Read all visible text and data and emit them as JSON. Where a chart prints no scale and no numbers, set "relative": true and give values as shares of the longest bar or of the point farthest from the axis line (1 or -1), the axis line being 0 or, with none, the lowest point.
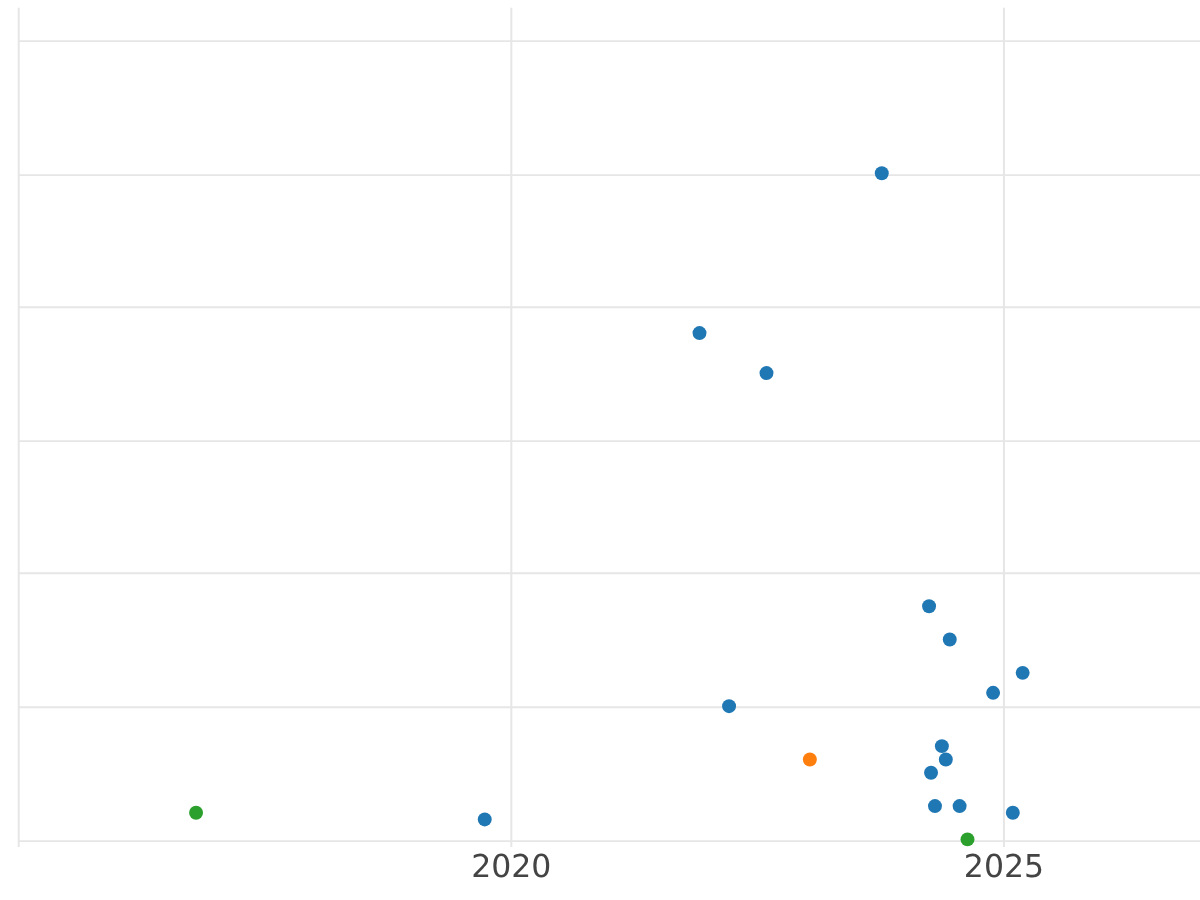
{
  "chart_data": {
    "type": "scatter",
    "relative": true,
    "grid": true,
    "marker": "circle",
    "xlim": [
      2015,
      2027
    ],
    "xticks": [
      {
        "value": 2015,
        "label": null
      },
      2020,
      2025
    ],
    "series": [
      {
        "color": "#1f77b4",
        "x": [
          2023.77,
          2021.92,
          2022.6,
          2024.25,
          2024.46,
          2025.2,
          2024.9,
          2022.22,
          2024.38,
          2024.42,
          2024.27,
          2024.31,
          2024.56,
          2025.1,
          2019.74
        ],
        "values": [
          1,
          0.76,
          0.7,
          0.35,
          0.3,
          0.25,
          0.22,
          0.2,
          0.14,
          0.12,
          0.1,
          0.05,
          0.05,
          0.04,
          0.03
        ]
      },
      {
        "color": "#ff7f0e",
        "x": [
          2023.04
        ],
        "values": [
          0.12
        ]
      },
      {
        "color": "#2ca02c",
        "x": [
          2016.81,
          2024.64
        ],
        "values": [
          0.04,
          0
        ]
      }
    ]
  }
}
